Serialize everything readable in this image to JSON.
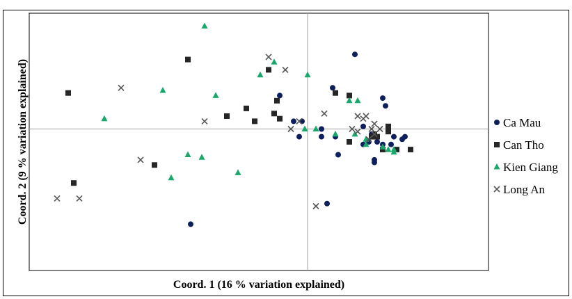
{
  "chart_data": {
    "type": "scatter",
    "title": "",
    "xlabel": "Coord. 1 (16 % variation explained)",
    "ylabel": "Coord. 2  (9 % variation explained)",
    "xlim": [
      -1.0,
      0.65
    ],
    "ylim": [
      -0.55,
      0.45
    ],
    "grid": false,
    "zero_lines": true,
    "legend_position": "right",
    "series": [
      {
        "name": "Ca Mau",
        "marker": "circle",
        "color": "#0d1f5c",
        "points": [
          [
            0.17,
            0.29
          ],
          [
            0.09,
            0.16
          ],
          [
            -0.1,
            0.13
          ],
          [
            0.27,
            0.12
          ],
          [
            0.28,
            0.09
          ],
          [
            -0.05,
            0.03
          ],
          [
            -0.02,
            0.03
          ],
          [
            0.05,
            0.0
          ],
          [
            0.2,
            0.01
          ],
          [
            0.1,
            -0.03
          ],
          [
            0.05,
            -0.03
          ],
          [
            -0.03,
            -0.03
          ],
          [
            0.23,
            -0.02
          ],
          [
            0.31,
            -0.03
          ],
          [
            0.35,
            -0.03
          ],
          [
            0.34,
            -0.04
          ],
          [
            0.27,
            -0.06
          ],
          [
            0.3,
            -0.06
          ],
          [
            0.22,
            -0.05
          ],
          [
            0.2,
            -0.06
          ],
          [
            0.25,
            -0.05
          ],
          [
            0.11,
            -0.1
          ],
          [
            0.24,
            -0.12
          ],
          [
            0.24,
            -0.13
          ],
          [
            0.07,
            -0.29
          ],
          [
            -0.42,
            -0.37
          ]
        ]
      },
      {
        "name": "Can Tho",
        "marker": "square",
        "color": "#262626",
        "points": [
          [
            -0.86,
            0.14
          ],
          [
            -0.43,
            0.27
          ],
          [
            -0.14,
            0.23
          ],
          [
            -0.11,
            0.11
          ],
          [
            -0.12,
            0.06
          ],
          [
            -0.1,
            0.04
          ],
          [
            -0.22,
            0.08
          ],
          [
            -0.19,
            0.03
          ],
          [
            -0.29,
            0.05
          ],
          [
            0.1,
            0.14
          ],
          [
            0.15,
            0.13
          ],
          [
            0.29,
            0.01
          ],
          [
            0.29,
            -0.01
          ],
          [
            0.25,
            -0.03
          ],
          [
            0.24,
            -0.02
          ],
          [
            0.23,
            -0.03
          ],
          [
            0.15,
            -0.05
          ],
          [
            0.32,
            -0.08
          ],
          [
            0.37,
            -0.08
          ],
          [
            0.27,
            -0.08
          ],
          [
            -0.55,
            -0.14
          ],
          [
            -0.84,
            -0.21
          ]
        ]
      },
      {
        "name": "Kien Giang",
        "marker": "triangle",
        "color": "#17a86a",
        "points": [
          [
            -0.37,
            0.4
          ],
          [
            -0.12,
            0.26
          ],
          [
            -0.17,
            0.21
          ],
          [
            0.0,
            0.21
          ],
          [
            -0.52,
            0.15
          ],
          [
            -0.33,
            0.13
          ],
          [
            -0.73,
            0.04
          ],
          [
            0.15,
            0.11
          ],
          [
            0.18,
            0.11
          ],
          [
            -0.01,
            0.0
          ],
          [
            0.03,
            0.0
          ],
          [
            0.1,
            -0.02
          ],
          [
            0.17,
            -0.02
          ],
          [
            0.21,
            -0.04
          ],
          [
            0.21,
            -0.06
          ],
          [
            0.27,
            -0.07
          ],
          [
            0.29,
            -0.08
          ],
          [
            0.31,
            -0.08
          ],
          [
            0.31,
            -0.09
          ],
          [
            -0.43,
            -0.1
          ],
          [
            -0.38,
            -0.11
          ],
          [
            -0.25,
            -0.17
          ],
          [
            -0.49,
            -0.19
          ]
        ]
      },
      {
        "name": "Long An",
        "marker": "x",
        "color": "#555555",
        "points": [
          [
            -0.14,
            0.28
          ],
          [
            -0.08,
            0.23
          ],
          [
            -0.67,
            0.16
          ],
          [
            0.06,
            0.06
          ],
          [
            0.18,
            0.05
          ],
          [
            0.21,
            0.05
          ],
          [
            0.2,
            0.04
          ],
          [
            0.24,
            0.02
          ],
          [
            0.23,
            0.0
          ],
          [
            0.16,
            0.0
          ],
          [
            0.18,
            -0.01
          ],
          [
            0.24,
            -0.02
          ],
          [
            -0.37,
            0.03
          ],
          [
            -0.03,
            0.03
          ],
          [
            -0.06,
            0.0
          ],
          [
            0.26,
            0.0
          ],
          [
            0.22,
            -0.04
          ],
          [
            -0.6,
            -0.12
          ],
          [
            -0.9,
            -0.27
          ],
          [
            -0.82,
            -0.27
          ],
          [
            0.03,
            -0.3
          ]
        ]
      }
    ]
  }
}
